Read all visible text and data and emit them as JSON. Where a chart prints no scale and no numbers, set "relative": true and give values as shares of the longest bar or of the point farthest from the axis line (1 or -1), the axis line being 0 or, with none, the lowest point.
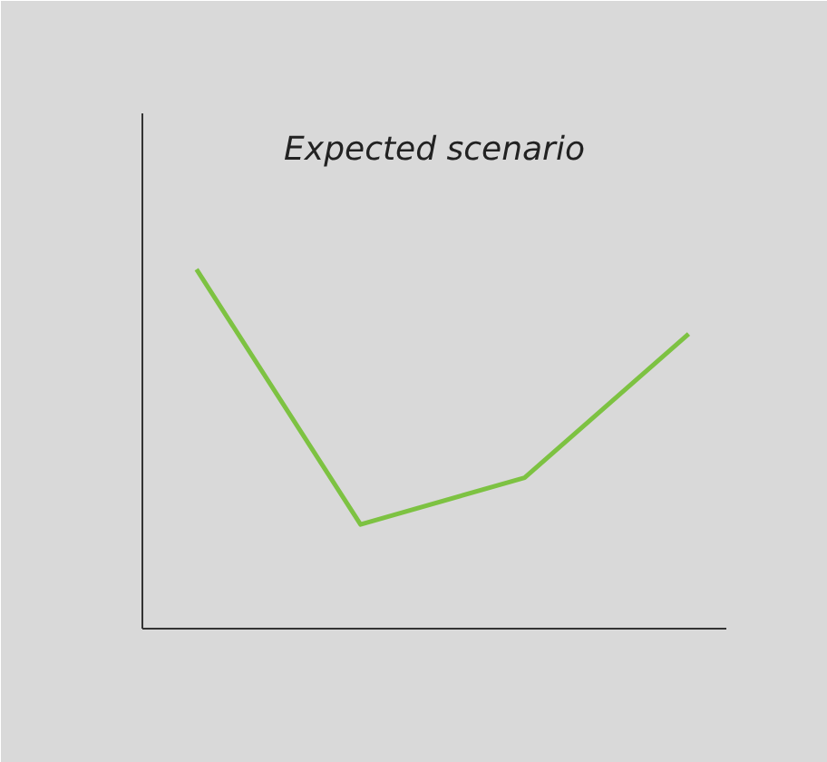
{
  "chart_data": {
    "type": "line",
    "title": "Expected scenario",
    "relative": true,
    "categories": [
      null,
      null,
      null,
      null
    ],
    "grid": false,
    "marker": "none",
    "line_style": "solid",
    "series": [
      {
        "color": "#7dc242",
        "values": [
          1,
          0.29,
          0.42,
          0.82
        ]
      }
    ]
  }
}
